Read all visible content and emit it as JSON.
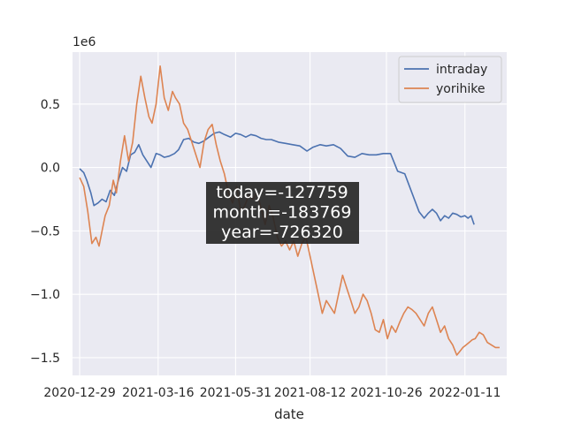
{
  "chart_data": {
    "type": "line",
    "xlabel": "date",
    "ylabel": "",
    "y_offset_label": "1e6",
    "y_scale_factor": 1000000,
    "ylim": [
      -1.64,
      0.91
    ],
    "xlim": [
      "2020-12-22",
      "2022-02-21"
    ],
    "grid": true,
    "legend": "top-right",
    "x_tick_labels": [
      "2020-12-29",
      "2021-03-16",
      "2021-05-31",
      "2021-08-12",
      "2021-10-26",
      "2022-01-11"
    ],
    "y_ticks": [
      0.5,
      0.0,
      -0.5,
      -1.0,
      -1.5
    ],
    "y_tick_labels": [
      "0.5",
      "0.0",
      "−0.5",
      "−1.0",
      "−1.5"
    ],
    "series": [
      {
        "name": "intraday",
        "color": "#4c72b0",
        "x": [
          "2020-12-29",
          "2021-01-02",
          "2021-01-05",
          "2021-01-09",
          "2021-01-12",
          "2021-01-16",
          "2021-01-20",
          "2021-01-24",
          "2021-01-28",
          "2021-02-01",
          "2021-02-05",
          "2021-02-09",
          "2021-02-13",
          "2021-02-17",
          "2021-02-21",
          "2021-02-25",
          "2021-03-01",
          "2021-03-05",
          "2021-03-09",
          "2021-03-14",
          "2021-03-18",
          "2021-03-22",
          "2021-03-27",
          "2021-04-01",
          "2021-04-05",
          "2021-04-10",
          "2021-04-15",
          "2021-04-20",
          "2021-04-25",
          "2021-04-30",
          "2021-05-05",
          "2021-05-10",
          "2021-05-15",
          "2021-05-20",
          "2021-05-26",
          "2021-05-31",
          "2021-06-05",
          "2021-06-10",
          "2021-06-15",
          "2021-06-20",
          "2021-06-25",
          "2021-06-30",
          "2021-07-05",
          "2021-07-12",
          "2021-07-19",
          "2021-07-26",
          "2021-08-02",
          "2021-08-09",
          "2021-08-15",
          "2021-08-22",
          "2021-08-28",
          "2021-09-04",
          "2021-09-11",
          "2021-09-18",
          "2021-09-25",
          "2021-10-02",
          "2021-10-09",
          "2021-10-16",
          "2021-10-23",
          "2021-10-30",
          "2021-11-06",
          "2021-11-13",
          "2021-11-20",
          "2021-11-27",
          "2021-12-02",
          "2021-12-06",
          "2021-12-10",
          "2021-12-14",
          "2021-12-18",
          "2021-12-22",
          "2021-12-26",
          "2021-12-30",
          "2022-01-03",
          "2022-01-07",
          "2022-01-11",
          "2022-01-14",
          "2022-01-17",
          "2022-01-20"
        ],
        "y": [
          -0.01,
          -0.04,
          -0.1,
          -0.2,
          -0.3,
          -0.28,
          -0.25,
          -0.27,
          -0.18,
          -0.22,
          -0.1,
          0.0,
          -0.03,
          0.1,
          0.12,
          0.18,
          0.1,
          0.05,
          0.0,
          0.11,
          0.1,
          0.08,
          0.09,
          0.11,
          0.14,
          0.22,
          0.23,
          0.2,
          0.19,
          0.21,
          0.24,
          0.27,
          0.28,
          0.26,
          0.24,
          0.27,
          0.26,
          0.24,
          0.26,
          0.25,
          0.23,
          0.22,
          0.22,
          0.2,
          0.19,
          0.18,
          0.17,
          0.13,
          0.16,
          0.18,
          0.17,
          0.18,
          0.15,
          0.09,
          0.08,
          0.11,
          0.1,
          0.1,
          0.11,
          0.11,
          -0.03,
          -0.05,
          -0.2,
          -0.35,
          -0.4,
          -0.36,
          -0.33,
          -0.36,
          -0.42,
          -0.38,
          -0.4,
          -0.36,
          -0.37,
          -0.39,
          -0.38,
          -0.4,
          -0.38,
          -0.45
        ]
      },
      {
        "name": "yorihike",
        "color": "#dd8452",
        "x": [
          "2020-12-29",
          "2021-01-02",
          "2021-01-06",
          "2021-01-10",
          "2021-01-14",
          "2021-01-17",
          "2021-01-20",
          "2021-01-23",
          "2021-01-27",
          "2021-01-31",
          "2021-02-03",
          "2021-02-07",
          "2021-02-11",
          "2021-02-15",
          "2021-02-19",
          "2021-02-23",
          "2021-02-27",
          "2021-03-03",
          "2021-03-07",
          "2021-03-10",
          "2021-03-14",
          "2021-03-18",
          "2021-03-22",
          "2021-03-26",
          "2021-03-30",
          "2021-04-02",
          "2021-04-06",
          "2021-04-10",
          "2021-04-14",
          "2021-04-18",
          "2021-04-22",
          "2021-04-26",
          "2021-04-30",
          "2021-05-04",
          "2021-05-08",
          "2021-05-12",
          "2021-05-16",
          "2021-05-20",
          "2021-05-24",
          "2021-05-28",
          "2021-06-01",
          "2021-06-05",
          "2021-06-09",
          "2021-06-13",
          "2021-06-17",
          "2021-06-21",
          "2021-06-25",
          "2021-06-29",
          "2021-07-03",
          "2021-07-07",
          "2021-07-11",
          "2021-07-15",
          "2021-07-19",
          "2021-07-23",
          "2021-07-27",
          "2021-07-31",
          "2021-08-04",
          "2021-08-08",
          "2021-08-12",
          "2021-08-16",
          "2021-08-20",
          "2021-08-24",
          "2021-08-28",
          "2021-09-01",
          "2021-09-05",
          "2021-09-09",
          "2021-09-13",
          "2021-09-17",
          "2021-09-21",
          "2021-09-25",
          "2021-09-29",
          "2021-10-03",
          "2021-10-07",
          "2021-10-11",
          "2021-10-15",
          "2021-10-19",
          "2021-10-23",
          "2021-10-27",
          "2021-10-31",
          "2021-11-04",
          "2021-11-08",
          "2021-11-12",
          "2021-11-16",
          "2021-11-20",
          "2021-11-24",
          "2021-11-28",
          "2021-12-02",
          "2021-12-06",
          "2021-12-10",
          "2021-12-14",
          "2021-12-18",
          "2021-12-22",
          "2021-12-26",
          "2021-12-30",
          "2022-01-03",
          "2022-01-06",
          "2022-01-09",
          "2022-01-12",
          "2022-01-15",
          "2022-01-18",
          "2022-01-21",
          "2022-01-25",
          "2022-01-29",
          "2022-02-02",
          "2022-02-06",
          "2022-02-10",
          "2022-02-14"
        ],
        "y": [
          -0.08,
          -0.15,
          -0.35,
          -0.6,
          -0.55,
          -0.62,
          -0.5,
          -0.38,
          -0.3,
          -0.1,
          -0.2,
          0.05,
          0.25,
          0.05,
          0.2,
          0.5,
          0.72,
          0.55,
          0.4,
          0.35,
          0.5,
          0.8,
          0.55,
          0.45,
          0.6,
          0.55,
          0.5,
          0.35,
          0.3,
          0.2,
          0.1,
          0.0,
          0.2,
          0.3,
          0.34,
          0.18,
          0.05,
          -0.05,
          -0.2,
          -0.28,
          -0.15,
          -0.35,
          -0.3,
          -0.22,
          -0.25,
          -0.2,
          -0.32,
          -0.45,
          -0.3,
          -0.4,
          -0.55,
          -0.62,
          -0.58,
          -0.65,
          -0.58,
          -0.7,
          -0.6,
          -0.55,
          -0.7,
          -0.85,
          -1.0,
          -1.15,
          -1.05,
          -1.1,
          -1.15,
          -1.0,
          -0.85,
          -0.95,
          -1.05,
          -1.15,
          -1.1,
          -1.0,
          -1.05,
          -1.15,
          -1.28,
          -1.3,
          -1.2,
          -1.35,
          -1.25,
          -1.3,
          -1.22,
          -1.15,
          -1.1,
          -1.12,
          -1.15,
          -1.2,
          -1.25,
          -1.15,
          -1.1,
          -1.2,
          -1.3,
          -1.25,
          -1.35,
          -1.4,
          -1.48,
          -1.45,
          -1.42,
          -1.4,
          -1.38,
          -1.36,
          -1.35,
          -1.3,
          -1.32,
          -1.38,
          -1.4,
          -1.42,
          -1.42
        ]
      }
    ],
    "annotation": {
      "lines": [
        "today=-127759",
        "month=-183769",
        "year=-726320"
      ]
    }
  }
}
